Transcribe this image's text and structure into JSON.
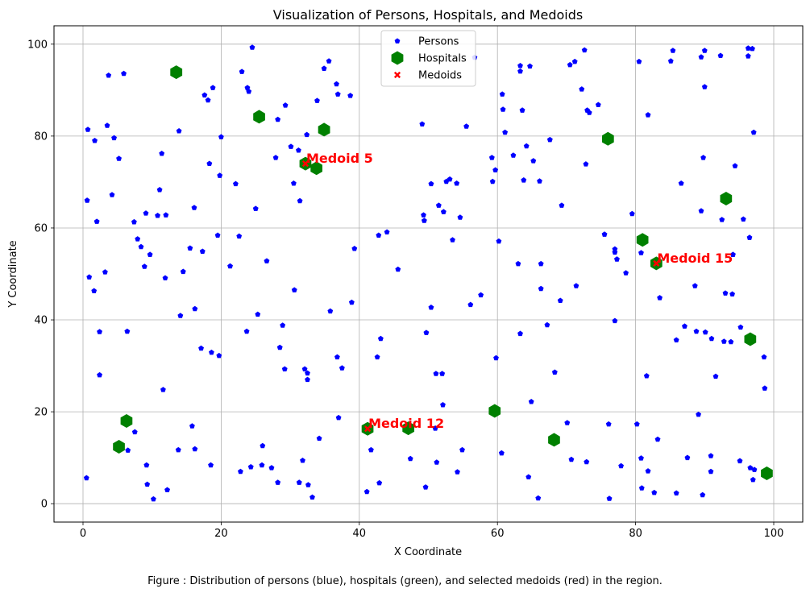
{
  "chart_data": {
    "type": "scatter",
    "title": "Visualization of Persons, Hospitals, and Medoids",
    "xlabel": "X Coordinate",
    "ylabel": "Y Coordinate",
    "xlim": [
      -4.2,
      104.2
    ],
    "ylim": [
      -4,
      104
    ],
    "xticks": [
      0,
      20,
      40,
      60,
      80,
      100
    ],
    "yticks": [
      0,
      20,
      40,
      60,
      80,
      100
    ],
    "xtick_labels": [
      "0",
      "20",
      "40",
      "60",
      "80",
      "100"
    ],
    "ytick_labels": [
      "0",
      "20",
      "40",
      "60",
      "80",
      "100"
    ],
    "grid": true,
    "legend": {
      "placement": "top-center",
      "entries": [
        {
          "label": "Persons",
          "marker": "pentagon",
          "color": "#0000ff"
        },
        {
          "label": "Hospitals",
          "marker": "hexagon",
          "color": "#008000"
        },
        {
          "label": "Medoids",
          "marker": "x",
          "color": "#ff0000"
        }
      ]
    },
    "series": [
      {
        "name": "Persons",
        "color": "#0000ff",
        "marker": "pentagon",
        "points": [
          [
            0.5,
            5.6
          ],
          [
            0.6,
            66
          ],
          [
            0.7,
            81.4
          ],
          [
            0.9,
            49.3
          ],
          [
            1.6,
            46.3
          ],
          [
            1.7,
            79
          ],
          [
            2,
            61.4
          ],
          [
            2.4,
            37.4
          ],
          [
            2.4,
            28
          ],
          [
            3.2,
            50.4
          ],
          [
            3.5,
            82.3
          ],
          [
            3.7,
            93.2
          ],
          [
            4.2,
            67.2
          ],
          [
            4.5,
            79.6
          ],
          [
            5.2,
            75.1
          ],
          [
            5.9,
            93.6
          ],
          [
            6.4,
            37.5
          ],
          [
            6.5,
            11.6
          ],
          [
            7.4,
            61.3
          ],
          [
            7.5,
            15.6
          ],
          [
            7.9,
            57.6
          ],
          [
            8.4,
            55.9
          ],
          [
            8.9,
            51.6
          ],
          [
            9.1,
            63.2
          ],
          [
            9.2,
            8.4
          ],
          [
            9.3,
            4.2
          ],
          [
            9.7,
            54.2
          ],
          [
            10.2,
            1
          ],
          [
            10.8,
            62.7
          ],
          [
            11.1,
            68.3
          ],
          [
            11.4,
            76.2
          ],
          [
            11.6,
            24.8
          ],
          [
            11.9,
            49.1
          ],
          [
            12,
            62.8
          ],
          [
            12.2,
            3
          ],
          [
            13.8,
            11.7
          ],
          [
            13.9,
            81.1
          ],
          [
            14.1,
            40.9
          ],
          [
            14.5,
            50.5
          ],
          [
            15.5,
            55.6
          ],
          [
            15.8,
            16.9
          ],
          [
            16.1,
            64.4
          ],
          [
            16.2,
            42.4
          ],
          [
            16.2,
            11.9
          ],
          [
            17.1,
            33.8
          ],
          [
            17.3,
            54.9
          ],
          [
            17.6,
            88.9
          ],
          [
            18.1,
            87.8
          ],
          [
            18.3,
            74
          ],
          [
            18.5,
            8.4
          ],
          [
            18.6,
            32.9
          ],
          [
            18.8,
            90.5
          ],
          [
            19.5,
            58.4
          ],
          [
            19.7,
            32.2
          ],
          [
            19.8,
            71.4
          ],
          [
            20,
            79.8
          ],
          [
            21.3,
            51.7
          ],
          [
            22.1,
            69.6
          ],
          [
            22.6,
            58.2
          ],
          [
            22.8,
            7
          ],
          [
            23,
            94
          ],
          [
            23.7,
            37.5
          ],
          [
            23.8,
            90.5
          ],
          [
            24,
            89.7
          ],
          [
            24.3,
            8
          ],
          [
            24.5,
            99.3
          ],
          [
            25,
            64.2
          ],
          [
            25.3,
            41.2
          ],
          [
            25.9,
            8.4
          ],
          [
            26,
            12.6
          ],
          [
            26.6,
            52.8
          ],
          [
            27.3,
            7.8
          ],
          [
            27.9,
            75.3
          ],
          [
            28.2,
            83.6
          ],
          [
            28.2,
            4.6
          ],
          [
            28.5,
            34
          ],
          [
            28.9,
            38.8
          ],
          [
            29.2,
            29.3
          ],
          [
            29.3,
            86.7
          ],
          [
            30.1,
            77.7
          ],
          [
            30.5,
            69.7
          ],
          [
            30.6,
            46.5
          ],
          [
            31.2,
            76.9
          ],
          [
            31.3,
            4.6
          ],
          [
            31.4,
            65.9
          ],
          [
            31.8,
            9.4
          ],
          [
            32.1,
            29.3
          ],
          [
            32.4,
            80.3
          ],
          [
            32.5,
            28.4
          ],
          [
            32.5,
            27
          ],
          [
            32.6,
            4.1
          ],
          [
            33.2,
            1.4
          ],
          [
            33.9,
            87.7
          ],
          [
            34.2,
            14.2
          ],
          [
            34.9,
            94.7
          ],
          [
            35.6,
            96.3
          ],
          [
            35.8,
            41.9
          ],
          [
            36.7,
            91.3
          ],
          [
            36.8,
            31.9
          ],
          [
            36.9,
            89.1
          ],
          [
            37,
            18.7
          ],
          [
            37.5,
            29.5
          ],
          [
            38.7,
            88.8
          ],
          [
            38.9,
            43.8
          ],
          [
            39.3,
            55.5
          ],
          [
            41.1,
            2.6
          ],
          [
            41.7,
            11.7
          ],
          [
            42.6,
            31.9
          ],
          [
            42.8,
            58.4
          ],
          [
            42.9,
            4.5
          ],
          [
            43.1,
            35.9
          ],
          [
            44,
            59.1
          ],
          [
            45.6,
            51
          ],
          [
            47.4,
            9.8
          ],
          [
            49.1,
            82.6
          ],
          [
            49.3,
            62.8
          ],
          [
            49.4,
            61.6
          ],
          [
            49.6,
            3.6
          ],
          [
            49.7,
            37.2
          ],
          [
            50.4,
            69.6
          ],
          [
            50.4,
            42.7
          ],
          [
            51,
            16.4
          ],
          [
            51.1,
            28.3
          ],
          [
            51.2,
            9
          ],
          [
            51.5,
            64.9
          ],
          [
            52,
            28.3
          ],
          [
            52.1,
            21.5
          ],
          [
            52.2,
            63.5
          ],
          [
            52.6,
            70.1
          ],
          [
            53.1,
            70.6
          ],
          [
            53.5,
            57.4
          ],
          [
            54.1,
            69.7
          ],
          [
            54.2,
            6.9
          ],
          [
            54.6,
            62.3
          ],
          [
            54.9,
            11.7
          ],
          [
            55.5,
            82.1
          ],
          [
            56.1,
            43.3
          ],
          [
            56.7,
            97.1
          ],
          [
            57.6,
            45.4
          ],
          [
            59.2,
            75.3
          ],
          [
            59.3,
            70.1
          ],
          [
            59.7,
            72.6
          ],
          [
            59.8,
            31.7
          ],
          [
            60.2,
            57.1
          ],
          [
            60.6,
            11
          ],
          [
            60.7,
            89.1
          ],
          [
            60.8,
            85.8
          ],
          [
            61.1,
            80.8
          ],
          [
            62.3,
            75.8
          ],
          [
            63,
            52.2
          ],
          [
            63.3,
            95.3
          ],
          [
            63.3,
            94.1
          ],
          [
            63.3,
            37
          ],
          [
            63.6,
            85.6
          ],
          [
            63.8,
            70.4
          ],
          [
            64.2,
            77.8
          ],
          [
            64.5,
            5.8
          ],
          [
            64.7,
            95.2
          ],
          [
            64.9,
            22.2
          ],
          [
            65.2,
            74.6
          ],
          [
            65.9,
            1.2
          ],
          [
            66.1,
            70.2
          ],
          [
            66.3,
            52.2
          ],
          [
            66.3,
            46.8
          ],
          [
            67.2,
            38.9
          ],
          [
            67.6,
            79.2
          ],
          [
            68.3,
            28.6
          ],
          [
            69.1,
            44.2
          ],
          [
            69.3,
            64.9
          ],
          [
            70.1,
            17.6
          ],
          [
            70.5,
            95.5
          ],
          [
            70.7,
            9.6
          ],
          [
            71.2,
            96.2
          ],
          [
            71.4,
            47.4
          ],
          [
            72.2,
            90.2
          ],
          [
            72.6,
            98.7
          ],
          [
            72.8,
            73.9
          ],
          [
            72.9,
            9.1
          ],
          [
            73,
            85.6
          ],
          [
            73.3,
            85.1
          ],
          [
            74.6,
            86.8
          ],
          [
            75.5,
            58.6
          ],
          [
            76.1,
            17.3
          ],
          [
            76.2,
            1.1
          ],
          [
            77,
            39.8
          ],
          [
            77,
            55.4
          ],
          [
            77,
            54.7
          ],
          [
            77.3,
            53.2
          ],
          [
            77.9,
            8.2
          ],
          [
            78.6,
            50.2
          ],
          [
            79.5,
            63.1
          ],
          [
            80.2,
            17.3
          ],
          [
            80.5,
            96.2
          ],
          [
            80.8,
            54.6
          ],
          [
            80.8,
            9.9
          ],
          [
            80.9,
            3.4
          ],
          [
            81.6,
            27.8
          ],
          [
            81.8,
            84.6
          ],
          [
            81.8,
            7.1
          ],
          [
            82.7,
            2.4
          ],
          [
            83.2,
            14
          ],
          [
            83.5,
            44.8
          ],
          [
            85.1,
            96.3
          ],
          [
            85.4,
            98.6
          ],
          [
            85.9,
            35.6
          ],
          [
            85.9,
            2.3
          ],
          [
            86.6,
            69.7
          ],
          [
            87.1,
            38.6
          ],
          [
            87.5,
            10
          ],
          [
            88.6,
            47.4
          ],
          [
            88.8,
            37.5
          ],
          [
            89.1,
            19.4
          ],
          [
            89.5,
            97.2
          ],
          [
            89.5,
            63.7
          ],
          [
            89.7,
            1.9
          ],
          [
            89.8,
            75.3
          ],
          [
            90,
            98.6
          ],
          [
            90,
            90.7
          ],
          [
            90.1,
            37.3
          ],
          [
            90.9,
            10.4
          ],
          [
            90.9,
            7
          ],
          [
            91,
            35.9
          ],
          [
            91.6,
            27.7
          ],
          [
            92.3,
            97.5
          ],
          [
            92.5,
            61.8
          ],
          [
            92.8,
            35.3
          ],
          [
            93,
            45.8
          ],
          [
            93.8,
            35.2
          ],
          [
            94,
            45.6
          ],
          [
            94.1,
            54.2
          ],
          [
            94.4,
            73.5
          ],
          [
            95.1,
            9.3
          ],
          [
            95.2,
            38.4
          ],
          [
            95.6,
            61.9
          ],
          [
            96.3,
            99.1
          ],
          [
            96.3,
            97.4
          ],
          [
            96.5,
            57.9
          ],
          [
            96.6,
            7.8
          ],
          [
            96.9,
            99
          ],
          [
            97,
            5.2
          ],
          [
            97.1,
            80.8
          ],
          [
            97.2,
            7.4
          ],
          [
            98.6,
            31.9
          ],
          [
            98.7,
            25.1
          ]
        ]
      },
      {
        "name": "Hospitals",
        "color": "#008000",
        "marker": "hexagon",
        "points": [
          [
            13.5,
            93.9
          ],
          [
            25.5,
            84.2
          ],
          [
            34.9,
            81.4
          ],
          [
            33.8,
            73
          ],
          [
            32.2,
            74
          ],
          [
            5.2,
            12.4
          ],
          [
            6.3,
            18
          ],
          [
            41.2,
            16.3
          ],
          [
            47.1,
            16.4
          ],
          [
            59.6,
            20.2
          ],
          [
            68.2,
            13.9
          ],
          [
            76,
            79.4
          ],
          [
            81,
            57.4
          ],
          [
            83,
            52.3
          ],
          [
            93.1,
            66.4
          ],
          [
            96.6,
            35.8
          ],
          [
            99,
            6.6
          ]
        ]
      },
      {
        "name": "Medoids",
        "color": "#ff0000",
        "marker": "x",
        "points": [
          [
            32.2,
            74
          ],
          [
            41.2,
            16.3
          ],
          [
            83,
            52.3
          ]
        ],
        "labels": [
          "Medoid 5",
          "Medoid 12",
          "Medoid 15"
        ]
      }
    ]
  },
  "caption": "Figure : Distribution of persons (blue), hospitals (green), and selected medoids (red) in the region."
}
